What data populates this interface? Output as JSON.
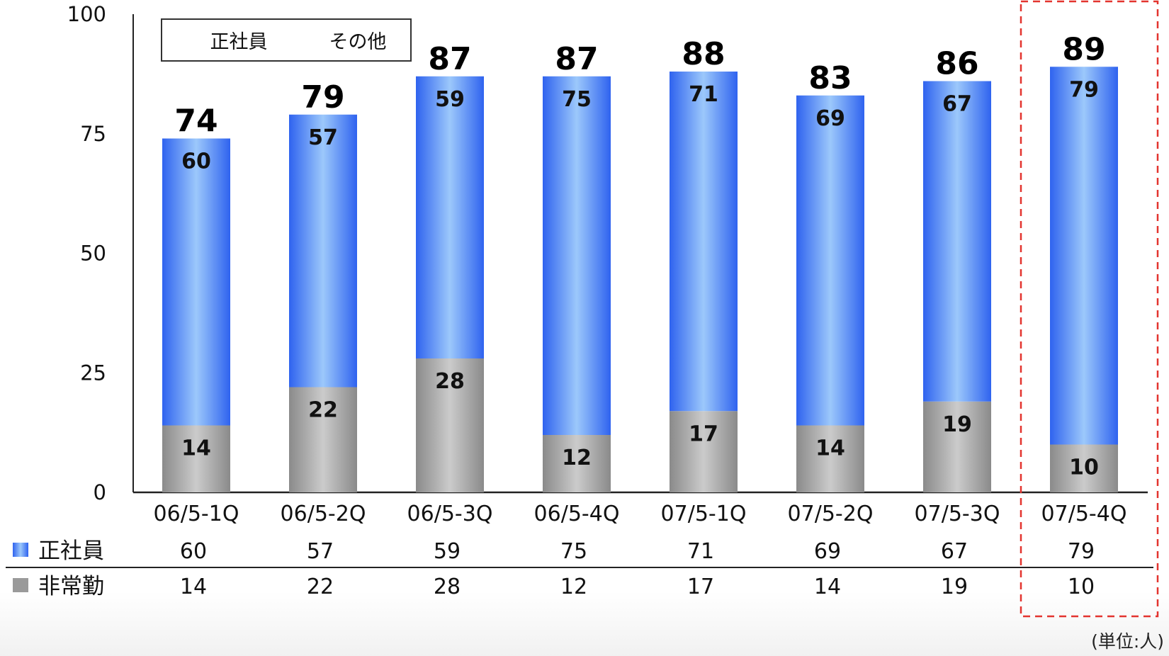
{
  "chart_data": {
    "type": "bar",
    "stacked": true,
    "categories": [
      "06/5-1Q",
      "06/5-2Q",
      "06/5-3Q",
      "06/5-4Q",
      "07/5-1Q",
      "07/5-2Q",
      "07/5-3Q",
      "07/5-4Q"
    ],
    "series": [
      {
        "name": "非常勤",
        "values": [
          14,
          22,
          28,
          12,
          17,
          14,
          19,
          10
        ],
        "color": "#a0a0a0"
      },
      {
        "name": "正社員",
        "values": [
          60,
          57,
          59,
          75,
          71,
          69,
          67,
          79
        ],
        "color": "#4f7ff2"
      }
    ],
    "totals": [
      74,
      79,
      87,
      87,
      88,
      83,
      86,
      89
    ],
    "ylim": [
      0,
      100
    ],
    "yticks": [
      "0",
      "25",
      "50",
      "75",
      "100"
    ],
    "legend": {
      "placement": "top-left",
      "entries": [
        "正社員",
        "その他"
      ]
    },
    "table_rows": [
      {
        "label": "正社員",
        "values": [
          "60",
          "57",
          "59",
          "75",
          "71",
          "69",
          "67",
          "79"
        ]
      },
      {
        "label": "非常勤",
        "values": [
          "14",
          "22",
          "28",
          "12",
          "17",
          "14",
          "19",
          "10"
        ]
      }
    ],
    "highlight": {
      "category": "07/5-4Q",
      "style": "red-dashed-box"
    },
    "unit_note": "(単位:人)",
    "grid": false
  }
}
